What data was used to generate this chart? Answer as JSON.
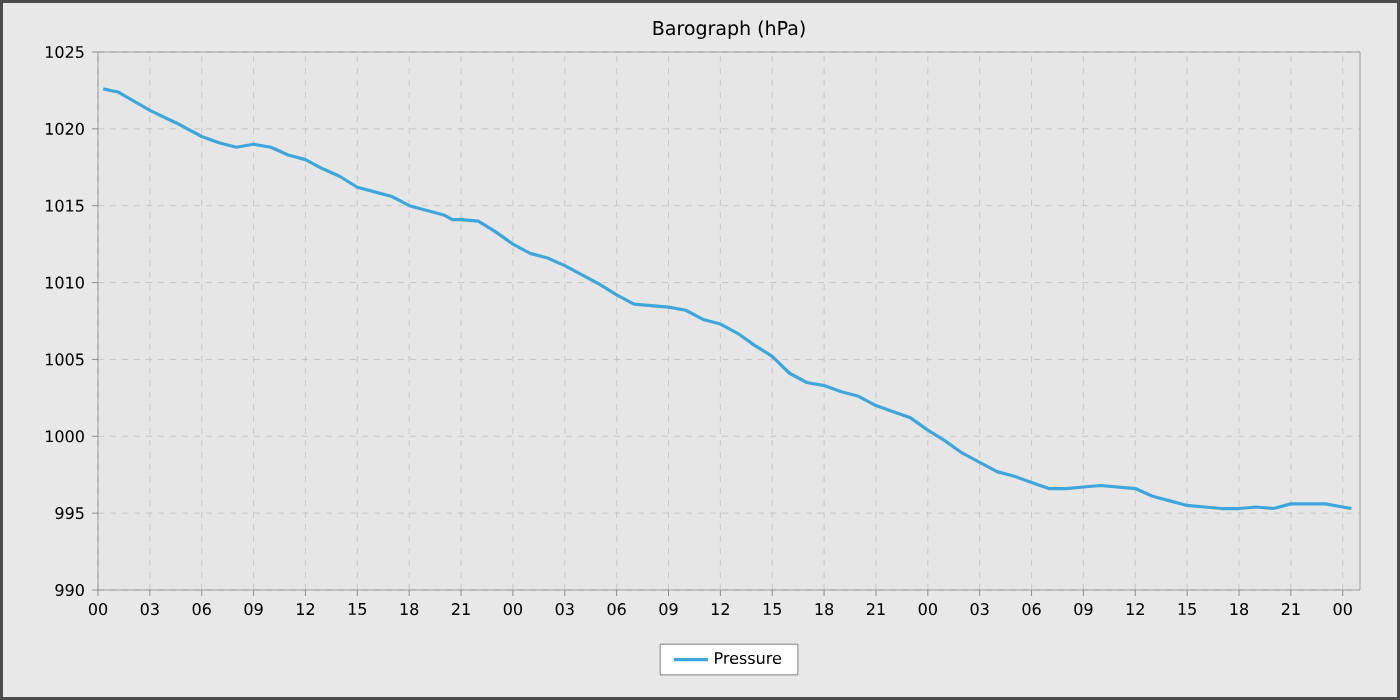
{
  "chart_data": {
    "type": "line",
    "title": "Barograph (hPa)",
    "x": [
      0.3,
      1.15,
      3,
      4.5,
      6,
      7,
      8,
      9,
      10,
      11,
      12,
      13,
      14,
      15,
      16,
      17,
      18,
      19,
      20,
      20.5,
      21,
      22,
      23,
      24,
      25,
      26,
      27,
      28,
      29,
      30,
      31,
      32,
      33,
      34,
      35,
      36,
      37,
      38,
      39,
      40,
      41,
      42,
      43,
      44,
      45,
      46,
      47,
      48,
      49,
      50,
      51,
      52,
      53,
      54,
      55,
      56,
      57,
      58,
      59,
      60,
      61,
      62,
      63,
      64,
      65,
      66,
      67,
      68,
      69,
      70,
      71,
      72,
      72.5
    ],
    "series": [
      {
        "name": "Pressure",
        "color": "#3fa6dc",
        "values": [
          1022.6,
          1022.4,
          1021.2,
          1020.4,
          1019.5,
          1019.1,
          1018.8,
          1019.0,
          1018.8,
          1018.3,
          1018.0,
          1017.4,
          1016.9,
          1016.2,
          1015.9,
          1015.6,
          1015.0,
          1014.7,
          1014.4,
          1014.1,
          1014.1,
          1014.0,
          1013.3,
          1012.5,
          1011.9,
          1011.6,
          1011.1,
          1010.5,
          1009.9,
          1009.2,
          1008.6,
          1008.5,
          1008.4,
          1008.2,
          1007.6,
          1007.3,
          1006.7,
          1005.9,
          1005.2,
          1004.1,
          1003.5,
          1003.3,
          1002.9,
          1002.6,
          1002.0,
          1001.6,
          1001.2,
          1000.4,
          999.7,
          998.9,
          998.3,
          997.7,
          997.4,
          997.0,
          996.6,
          996.6,
          996.7,
          996.8,
          996.7,
          996.6,
          996.1,
          995.8,
          995.5,
          995.4,
          995.3,
          995.3,
          995.4,
          995.3,
          995.6,
          995.6,
          995.6,
          995.4,
          995.3
        ]
      }
    ],
    "xlim": [
      0,
      73
    ],
    "xticks": [
      {
        "value": 0,
        "label": "00"
      },
      {
        "value": 3,
        "label": "03"
      },
      {
        "value": 6,
        "label": "06"
      },
      {
        "value": 9,
        "label": "09"
      },
      {
        "value": 12,
        "label": "12"
      },
      {
        "value": 15,
        "label": "15"
      },
      {
        "value": 18,
        "label": "18"
      },
      {
        "value": 21,
        "label": "21"
      },
      {
        "value": 24,
        "label": "00"
      },
      {
        "value": 27,
        "label": "03"
      },
      {
        "value": 30,
        "label": "06"
      },
      {
        "value": 33,
        "label": "09"
      },
      {
        "value": 36,
        "label": "12"
      },
      {
        "value": 39,
        "label": "15"
      },
      {
        "value": 42,
        "label": "18"
      },
      {
        "value": 45,
        "label": "21"
      },
      {
        "value": 48,
        "label": "00"
      },
      {
        "value": 51,
        "label": "03"
      },
      {
        "value": 54,
        "label": "06"
      },
      {
        "value": 57,
        "label": "09"
      },
      {
        "value": 60,
        "label": "12"
      },
      {
        "value": 63,
        "label": "15"
      },
      {
        "value": 66,
        "label": "18"
      },
      {
        "value": 69,
        "label": "21"
      },
      {
        "value": 72,
        "label": "00"
      }
    ],
    "ylim": [
      990,
      1025
    ],
    "yticks": [
      990,
      995,
      1000,
      1005,
      1010,
      1015,
      1020,
      1025
    ],
    "grid": true,
    "legend": "bottom",
    "marker": "none",
    "line_style": "solid"
  }
}
